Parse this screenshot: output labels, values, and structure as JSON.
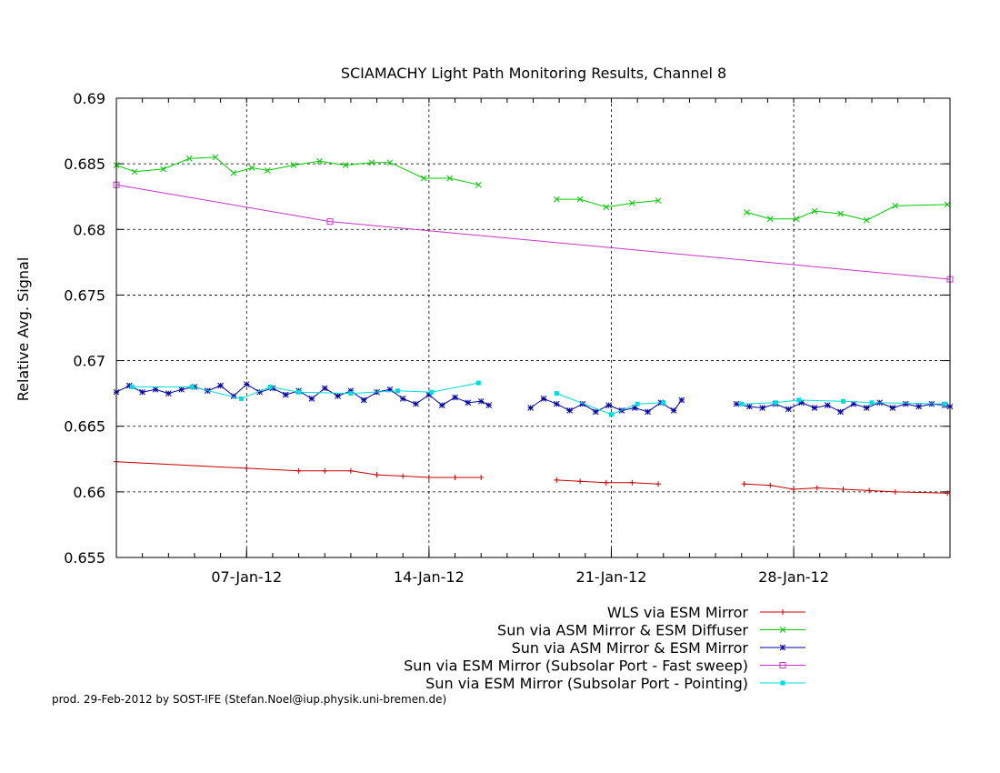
{
  "chart_data": {
    "type": "line",
    "title": "SCIAMACHY Light Path Monitoring Results, Channel 8",
    "xlabel": "",
    "ylabel": "Relative Avg. Signal",
    "xlim": [
      "2012-01-02",
      "2012-02-03"
    ],
    "ylim": [
      0.655,
      0.69
    ],
    "y_ticks": [
      "0.655",
      "0.66",
      "0.665",
      "0.67",
      "0.675",
      "0.68",
      "0.685",
      "0.69"
    ],
    "x_ticks": [
      {
        "label": "07-Jan-12",
        "date": "2012-01-07"
      },
      {
        "label": "14-Jan-12",
        "date": "2012-01-14"
      },
      {
        "label": "21-Jan-12",
        "date": "2012-01-21"
      },
      {
        "label": "28-Jan-12",
        "date": "2012-01-28"
      }
    ],
    "grid": true,
    "legend_position": "bottom-right",
    "series": [
      {
        "name": "WLS via ESM Mirror",
        "color": "#cc0000",
        "marker": "plus",
        "segments": [
          [
            [
              "2012-01-02",
              0.6623
            ],
            [
              "2012-01-07",
              0.6618
            ],
            [
              "2012-01-09",
              0.6616
            ],
            [
              "2012-01-10",
              0.6616
            ],
            [
              "2012-01-11",
              0.6616
            ],
            [
              "2012-01-12",
              0.6613
            ],
            [
              "2012-01-13",
              0.6612
            ],
            [
              "2012-01-14",
              0.6611
            ],
            [
              "2012-01-15",
              0.6611
            ],
            [
              "2012-01-16",
              0.6611
            ]
          ],
          [
            [
              "2012-01-18.9",
              0.6609
            ],
            [
              "2012-01-19.8",
              0.6608
            ],
            [
              "2012-01-20.8",
              0.6607
            ],
            [
              "2012-01-21.8",
              0.6607
            ],
            [
              "2012-01-22.8",
              0.6606
            ]
          ],
          [
            [
              "2012-01-26.1",
              0.6606
            ],
            [
              "2012-01-27.1",
              0.6605
            ],
            [
              "2012-01-28",
              0.6602
            ],
            [
              "2012-01-28.9",
              0.6603
            ],
            [
              "2012-01-29.9",
              0.6602
            ],
            [
              "2012-01-30.9",
              0.6601
            ],
            [
              "2012-01-31.9",
              0.66
            ],
            [
              "2012-02-02.9",
              0.6599
            ]
          ]
        ]
      },
      {
        "name": "Sun via ASM Mirror & ESM Diffuser",
        "color": "#00cc00",
        "marker": "cross",
        "segments": [
          [
            [
              "2012-01-02",
              0.6849
            ],
            [
              "2012-01-02.7",
              0.6844
            ],
            [
              "2012-01-03.8",
              0.6846
            ],
            [
              "2012-01-04.8",
              0.6854
            ],
            [
              "2012-01-05.8",
              0.6855
            ],
            [
              "2012-01-06.5",
              0.6843
            ],
            [
              "2012-01-07.2",
              0.6847
            ],
            [
              "2012-01-07.8",
              0.6845
            ],
            [
              "2012-01-08.8",
              0.6849
            ],
            [
              "2012-01-09.8",
              0.6852
            ],
            [
              "2012-01-10.8",
              0.6849
            ],
            [
              "2012-01-11.8",
              0.6851
            ],
            [
              "2012-01-12.5",
              0.6851
            ],
            [
              "2012-01-13.8",
              0.6839
            ],
            [
              "2012-01-14.8",
              0.6839
            ],
            [
              "2012-01-15.9",
              0.6834
            ]
          ],
          [
            [
              "2012-01-18.9",
              0.6823
            ],
            [
              "2012-01-19.8",
              0.6823
            ],
            [
              "2012-01-20.8",
              0.6817
            ],
            [
              "2012-01-21.8",
              0.682
            ],
            [
              "2012-01-22.8",
              0.6822
            ]
          ],
          [
            [
              "2012-01-26.2",
              0.6813
            ],
            [
              "2012-01-27.1",
              0.6808
            ],
            [
              "2012-01-28.1",
              0.6808
            ],
            [
              "2012-01-28.8",
              0.6814
            ],
            [
              "2012-01-29.8",
              0.6812
            ],
            [
              "2012-01-30.8",
              0.6807
            ],
            [
              "2012-01-31.9",
              0.6818
            ],
            [
              "2012-02-02.9",
              0.6819
            ]
          ]
        ]
      },
      {
        "name": "Sun via ASM Mirror & ESM Mirror",
        "color": "#0000aa",
        "marker": "star",
        "segments": [
          [
            [
              "2012-01-02",
              0.6676
            ],
            [
              "2012-01-02.5",
              0.6681
            ],
            [
              "2012-01-03",
              0.6676
            ],
            [
              "2012-01-03.5",
              0.6678
            ],
            [
              "2012-01-04",
              0.6675
            ],
            [
              "2012-01-04.5",
              0.6678
            ],
            [
              "2012-01-05",
              0.668
            ],
            [
              "2012-01-05.5",
              0.6677
            ],
            [
              "2012-01-06",
              0.6681
            ],
            [
              "2012-01-06.5",
              0.6673
            ],
            [
              "2012-01-07",
              0.6682
            ],
            [
              "2012-01-07.5",
              0.6676
            ],
            [
              "2012-01-08",
              0.6679
            ],
            [
              "2012-01-08.5",
              0.6674
            ],
            [
              "2012-01-09",
              0.6677
            ],
            [
              "2012-01-09.5",
              0.6671
            ],
            [
              "2012-01-10",
              0.6679
            ],
            [
              "2012-01-10.5",
              0.6673
            ],
            [
              "2012-01-11",
              0.6677
            ],
            [
              "2012-01-11.5",
              0.667
            ],
            [
              "2012-01-12",
              0.6676
            ],
            [
              "2012-01-12.5",
              0.6678
            ],
            [
              "2012-01-13",
              0.6671
            ],
            [
              "2012-01-13.5",
              0.6667
            ],
            [
              "2012-01-14",
              0.6674
            ],
            [
              "2012-01-14.5",
              0.6666
            ],
            [
              "2012-01-15",
              0.6672
            ],
            [
              "2012-01-15.5",
              0.6668
            ],
            [
              "2012-01-16",
              0.6669
            ],
            [
              "2012-01-16.3",
              0.6666
            ]
          ],
          [
            [
              "2012-01-17.9",
              0.6664
            ],
            [
              "2012-01-18.4",
              0.6671
            ],
            [
              "2012-01-18.9",
              0.6667
            ],
            [
              "2012-01-19.4",
              0.6662
            ],
            [
              "2012-01-19.9",
              0.6667
            ],
            [
              "2012-01-20.4",
              0.6661
            ],
            [
              "2012-01-20.9",
              0.6666
            ],
            [
              "2012-01-21.4",
              0.6662
            ],
            [
              "2012-01-21.9",
              0.6664
            ],
            [
              "2012-01-22.4",
              0.6661
            ],
            [
              "2012-01-22.9",
              0.6668
            ],
            [
              "2012-01-23.4",
              0.6662
            ],
            [
              "2012-01-23.7",
              0.667
            ]
          ],
          [
            [
              "2012-01-25.8",
              0.6667
            ],
            [
              "2012-01-26.3",
              0.6665
            ],
            [
              "2012-01-26.8",
              0.6664
            ],
            [
              "2012-01-27.3",
              0.6667
            ],
            [
              "2012-01-27.8",
              0.6663
            ],
            [
              "2012-01-28.3",
              0.6668
            ],
            [
              "2012-01-28.8",
              0.6664
            ],
            [
              "2012-01-29.3",
              0.6666
            ],
            [
              "2012-01-29.8",
              0.6661
            ],
            [
              "2012-01-30.3",
              0.6667
            ],
            [
              "2012-01-30.8",
              0.6664
            ],
            [
              "2012-01-31.3",
              0.6668
            ],
            [
              "2012-01-31.8",
              0.6664
            ],
            [
              "2012-02-01.3",
              0.6667
            ],
            [
              "2012-02-01.8",
              0.6665
            ],
            [
              "2012-02-02.3",
              0.6667
            ],
            [
              "2012-02-02.8",
              0.6666
            ],
            [
              "2012-02-03",
              0.6665
            ]
          ]
        ]
      },
      {
        "name": "Sun via ESM Mirror (Subsolar Port - Fast sweep)",
        "color": "#cc33cc",
        "marker": "square",
        "segments": [
          [
            [
              "2012-01-02",
              0.6834
            ],
            [
              "2012-01-10.2",
              0.6806
            ],
            [
              "2012-02-03",
              0.6762
            ]
          ]
        ]
      },
      {
        "name": "Sun via ESM Mirror (Subsolar Port - Pointing)",
        "color": "#00dddd",
        "marker": "filled-square",
        "segments": [
          [
            [
              "2012-01-02.6",
              0.668
            ],
            [
              "2012-01-04.9",
              0.668
            ],
            [
              "2012-01-06.8",
              0.6671
            ],
            [
              "2012-01-07.9",
              0.668
            ],
            [
              "2012-01-09",
              0.6676
            ],
            [
              "2012-01-11",
              0.6675
            ],
            [
              "2012-01-12.8",
              0.6677
            ],
            [
              "2012-01-14.1",
              0.6676
            ],
            [
              "2012-01-15.9",
              0.6683
            ]
          ],
          [
            [
              "2012-01-18.9",
              0.6675
            ],
            [
              "2012-01-21",
              0.6659
            ],
            [
              "2012-01-22",
              0.6667
            ],
            [
              "2012-01-23",
              0.6668
            ]
          ],
          [
            [
              "2012-01-26",
              0.6667
            ],
            [
              "2012-01-27.3",
              0.6668
            ],
            [
              "2012-01-28.2",
              0.667
            ],
            [
              "2012-01-29.9",
              0.6669
            ],
            [
              "2012-01-31",
              0.6668
            ],
            [
              "2012-02-02.8",
              0.6667
            ]
          ]
        ]
      }
    ]
  },
  "footer": "prod. 29-Feb-2012 by SOST-IFE (Stefan.Noel@iup.physik.uni-bremen.de)"
}
